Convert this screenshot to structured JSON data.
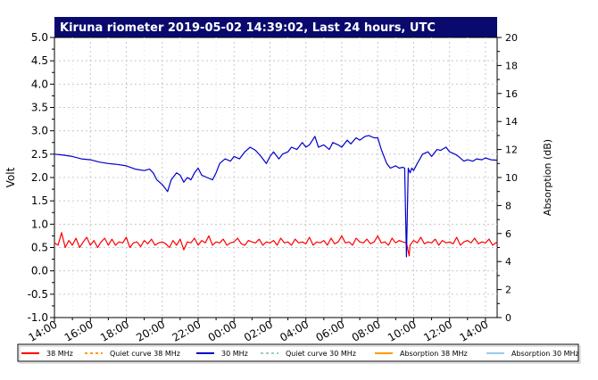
{
  "chart_data": {
    "type": "line",
    "title": "Kiruna riometer 2019-05-02 14:39:02, Last 24 hours, UTC",
    "ylabel": "Volt",
    "y2label": "Absorption (dB)",
    "ylim": [
      -1.0,
      5.0
    ],
    "y2lim": [
      0,
      20
    ],
    "yticks": [
      "-1.0",
      "-0.5",
      "0.0",
      "0.5",
      "1.0",
      "1.5",
      "2.0",
      "2.5",
      "3.0",
      "3.5",
      "4.0",
      "4.5",
      "5.0"
    ],
    "y2ticks": [
      "0",
      "2",
      "4",
      "6",
      "8",
      "10",
      "12",
      "14",
      "16",
      "18",
      "20"
    ],
    "xlim": [
      0,
      24.65
    ],
    "xtick_labels": [
      "14:00",
      "16:00",
      "18:00",
      "20:00",
      "22:00",
      "00:00",
      "02:00",
      "04:00",
      "06:00",
      "08:00",
      "10:00",
      "12:00",
      "14:00"
    ],
    "grid": true,
    "legend_position": "bottom",
    "series": [
      {
        "name": "38 MHz",
        "color": "#ff0000",
        "x": [
          0,
          0.2,
          0.4,
          0.6,
          0.8,
          1.0,
          1.2,
          1.4,
          1.6,
          1.8,
          2.0,
          2.2,
          2.4,
          2.6,
          2.8,
          3.0,
          3.2,
          3.4,
          3.6,
          3.8,
          4.0,
          4.2,
          4.4,
          4.6,
          4.8,
          5.0,
          5.2,
          5.4,
          5.6,
          5.8,
          6.0,
          6.2,
          6.4,
          6.6,
          6.8,
          7.0,
          7.2,
          7.4,
          7.6,
          7.8,
          8.0,
          8.2,
          8.4,
          8.6,
          8.8,
          9.0,
          9.2,
          9.4,
          9.6,
          9.8,
          10.0,
          10.2,
          10.4,
          10.6,
          10.8,
          11.0,
          11.2,
          11.4,
          11.6,
          11.8,
          12.0,
          12.2,
          12.4,
          12.6,
          12.8,
          13.0,
          13.2,
          13.4,
          13.6,
          13.8,
          14.0,
          14.2,
          14.4,
          14.6,
          14.8,
          15.0,
          15.2,
          15.4,
          15.6,
          15.8,
          16.0,
          16.2,
          16.4,
          16.6,
          16.8,
          17.0,
          17.2,
          17.4,
          17.6,
          17.8,
          18.0,
          18.2,
          18.4,
          18.6,
          18.8,
          19.0,
          19.2,
          19.4,
          19.6,
          19.75,
          19.8,
          20.0,
          20.2,
          20.4,
          20.6,
          20.8,
          21.0,
          21.2,
          21.4,
          21.6,
          21.8,
          22.0,
          22.2,
          22.4,
          22.6,
          22.8,
          23.0,
          23.2,
          23.4,
          23.6,
          23.8,
          24.0,
          24.2,
          24.4,
          24.65
        ],
        "values": [
          0.6,
          0.55,
          0.82,
          0.5,
          0.65,
          0.55,
          0.7,
          0.5,
          0.62,
          0.72,
          0.55,
          0.65,
          0.5,
          0.62,
          0.7,
          0.55,
          0.68,
          0.55,
          0.62,
          0.6,
          0.72,
          0.5,
          0.6,
          0.62,
          0.52,
          0.65,
          0.58,
          0.68,
          0.55,
          0.6,
          0.62,
          0.58,
          0.5,
          0.65,
          0.55,
          0.68,
          0.45,
          0.62,
          0.6,
          0.7,
          0.55,
          0.65,
          0.6,
          0.75,
          0.55,
          0.62,
          0.6,
          0.68,
          0.55,
          0.6,
          0.62,
          0.7,
          0.58,
          0.55,
          0.65,
          0.62,
          0.6,
          0.68,
          0.55,
          0.62,
          0.6,
          0.65,
          0.55,
          0.7,
          0.6,
          0.62,
          0.55,
          0.68,
          0.6,
          0.62,
          0.58,
          0.72,
          0.55,
          0.62,
          0.6,
          0.65,
          0.55,
          0.7,
          0.58,
          0.62,
          0.75,
          0.6,
          0.62,
          0.55,
          0.7,
          0.62,
          0.6,
          0.68,
          0.58,
          0.62,
          0.75,
          0.6,
          0.62,
          0.55,
          0.7,
          0.6,
          0.65,
          0.62,
          0.6,
          0.32,
          0.55,
          0.65,
          0.6,
          0.72,
          0.58,
          0.62,
          0.6,
          0.68,
          0.55,
          0.65,
          0.6,
          0.62,
          0.58,
          0.72,
          0.55,
          0.62,
          0.65,
          0.6,
          0.7,
          0.58,
          0.62,
          0.6,
          0.68,
          0.55,
          0.62
        ]
      },
      {
        "name": "Quiet curve 38 MHz",
        "color": "#ff9900",
        "dashed": true,
        "values": []
      },
      {
        "name": "30 MHz",
        "color": "#0000cc",
        "x": [
          0,
          0.5,
          1.0,
          1.5,
          2.0,
          2.5,
          3.0,
          3.5,
          4.0,
          4.5,
          5.0,
          5.3,
          5.5,
          5.7,
          6.0,
          6.3,
          6.5,
          6.8,
          7.0,
          7.2,
          7.4,
          7.6,
          7.8,
          8.0,
          8.2,
          8.5,
          8.8,
          9.0,
          9.2,
          9.5,
          9.8,
          10.0,
          10.3,
          10.6,
          10.9,
          11.2,
          11.5,
          11.8,
          12.0,
          12.2,
          12.5,
          12.7,
          13.0,
          13.2,
          13.5,
          13.8,
          14.0,
          14.2,
          14.5,
          14.7,
          15.0,
          15.3,
          15.5,
          15.8,
          16.0,
          16.3,
          16.5,
          16.8,
          17.0,
          17.3,
          17.5,
          17.8,
          18.0,
          18.2,
          18.5,
          18.7,
          19.0,
          19.2,
          19.4,
          19.5,
          19.6,
          19.7,
          19.8,
          19.9,
          20.0,
          20.2,
          20.5,
          20.8,
          21.0,
          21.3,
          21.5,
          21.8,
          22.0,
          22.3,
          22.5,
          22.8,
          23.0,
          23.3,
          23.5,
          23.8,
          24.0,
          24.3,
          24.65
        ],
        "values": [
          2.5,
          2.48,
          2.45,
          2.4,
          2.38,
          2.33,
          2.3,
          2.28,
          2.25,
          2.18,
          2.15,
          2.18,
          2.1,
          1.95,
          1.85,
          1.7,
          1.95,
          2.1,
          2.05,
          1.9,
          2.0,
          1.95,
          2.1,
          2.2,
          2.05,
          2.0,
          1.95,
          2.1,
          2.3,
          2.4,
          2.35,
          2.45,
          2.4,
          2.55,
          2.65,
          2.58,
          2.45,
          2.3,
          2.45,
          2.55,
          2.4,
          2.5,
          2.55,
          2.65,
          2.6,
          2.75,
          2.65,
          2.7,
          2.88,
          2.65,
          2.7,
          2.6,
          2.75,
          2.7,
          2.65,
          2.8,
          2.72,
          2.85,
          2.8,
          2.88,
          2.9,
          2.85,
          2.85,
          2.6,
          2.3,
          2.2,
          2.25,
          2.2,
          2.22,
          2.2,
          0.3,
          2.2,
          2.1,
          2.2,
          2.15,
          2.3,
          2.5,
          2.55,
          2.45,
          2.6,
          2.58,
          2.65,
          2.55,
          2.5,
          2.45,
          2.35,
          2.38,
          2.35,
          2.4,
          2.38,
          2.42,
          2.38,
          2.37
        ]
      },
      {
        "name": "Quiet curve 30 MHz",
        "color": "#99cccc",
        "dashed": true,
        "values": []
      },
      {
        "name": "Absorption 38 MHz",
        "color": "#ff9900",
        "values": []
      },
      {
        "name": "Absorption 30 MHz",
        "color": "#99ccee",
        "values": []
      }
    ]
  }
}
